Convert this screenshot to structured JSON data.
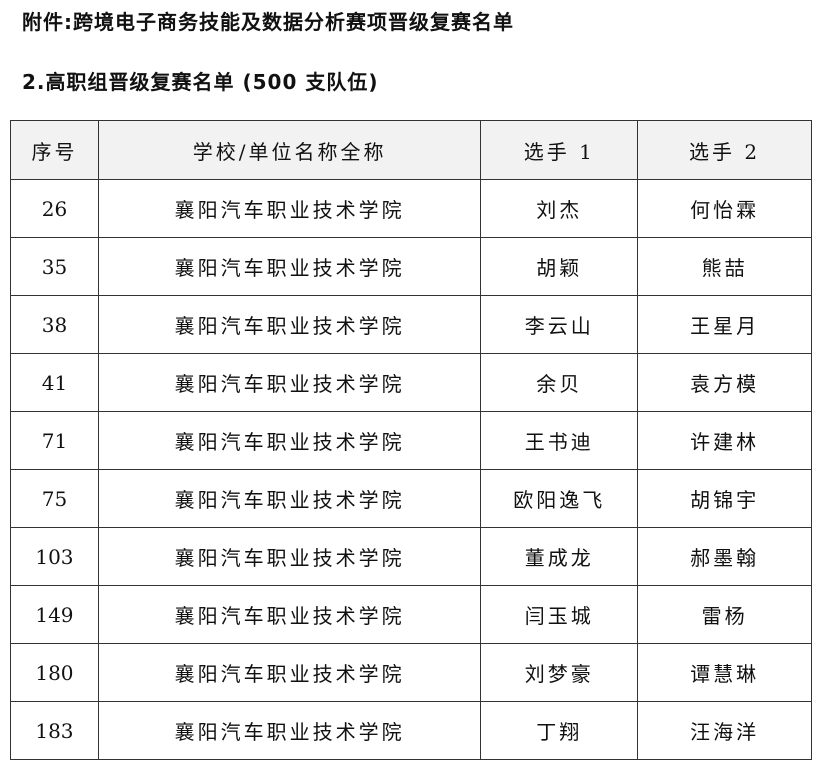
{
  "title": "附件:跨境电子商务技能及数据分析赛项晋级复赛名单",
  "subtitle": "2.高职组晋级复赛名单 (500 支队伍)",
  "headers": [
    "序号",
    "学校/单位名称全称",
    "选手 1",
    "选手 2"
  ],
  "rows": [
    [
      "26",
      "襄阳汽车职业技术学院",
      "刘杰",
      "何怡霖"
    ],
    [
      "35",
      "襄阳汽车职业技术学院",
      "胡颖",
      "熊喆"
    ],
    [
      "38",
      "襄阳汽车职业技术学院",
      "李云山",
      "王星月"
    ],
    [
      "41",
      "襄阳汽车职业技术学院",
      "余贝",
      "袁方模"
    ],
    [
      "71",
      "襄阳汽车职业技术学院",
      "王书迪",
      "许建林"
    ],
    [
      "75",
      "襄阳汽车职业技术学院",
      "欧阳逸飞",
      "胡锦宇"
    ],
    [
      "103",
      "襄阳汽车职业技术学院",
      "董成龙",
      "郝墨翰"
    ],
    [
      "149",
      "襄阳汽车职业技术学院",
      "闫玉城",
      "雷杨"
    ],
    [
      "180",
      "襄阳汽车职业技术学院",
      "刘梦豪",
      "谭慧琳"
    ],
    [
      "183",
      "襄阳汽车职业技术学院",
      "丁翔",
      "汪海洋"
    ]
  ]
}
